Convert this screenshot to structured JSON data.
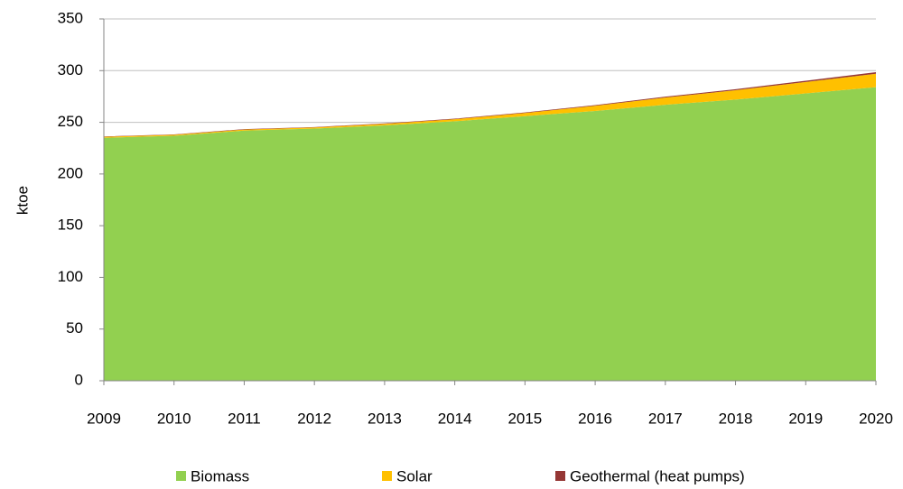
{
  "chart_data": {
    "type": "stacked_area",
    "y_label": "ktoe",
    "x": [
      2009,
      2010,
      2011,
      2012,
      2013,
      2014,
      2015,
      2016,
      2017,
      2018,
      2019,
      2020
    ],
    "xlim": [
      2009,
      2020
    ],
    "xticks": [
      2009,
      2010,
      2011,
      2012,
      2013,
      2014,
      2015,
      2016,
      2017,
      2018,
      2019,
      2020
    ],
    "ylim": [
      0,
      350
    ],
    "yticks": [
      0,
      50,
      100,
      150,
      200,
      250,
      300,
      350
    ],
    "grid": true,
    "legend": "bottom",
    "series": [
      {
        "name": "Biomass",
        "color": "#92d050",
        "values": [
          235,
          237,
          242,
          244,
          247,
          251,
          256,
          261,
          267,
          272,
          278,
          284
        ]
      },
      {
        "name": "Solar",
        "color": "#ffc000",
        "values": [
          1,
          1,
          1,
          1,
          1.5,
          2,
          3,
          5,
          7,
          9,
          11,
          13
        ]
      },
      {
        "name": "Geothermal (heat pumps)",
        "color": "#953735",
        "values": [
          0.3,
          0.3,
          0.4,
          0.4,
          0.5,
          0.5,
          0.6,
          0.7,
          0.8,
          1,
          1.2,
          1.5
        ]
      }
    ]
  }
}
